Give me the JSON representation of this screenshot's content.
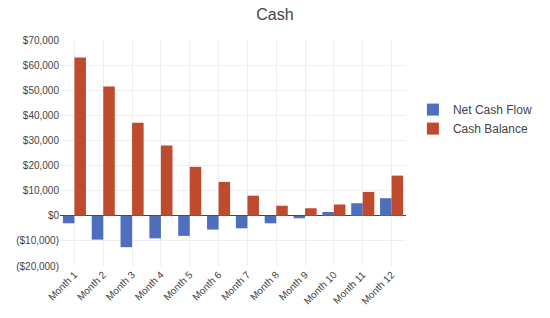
{
  "chart_data": {
    "type": "bar",
    "title": "Cash",
    "categories": [
      "Month 1",
      "Month 2",
      "Month 3",
      "Month 4",
      "Month 5",
      "Month 6",
      "Month 7",
      "Month 8",
      "Month 9",
      "Month 10",
      "Month 11",
      "Month 12"
    ],
    "series": [
      {
        "name": "Net Cash Flow",
        "color": "#4F6EBE",
        "values": [
          -3000,
          -9500,
          -12500,
          -9000,
          -8000,
          -5500,
          -5000,
          -3000,
          -1000,
          1500,
          5000,
          7000
        ]
      },
      {
        "name": "Cash Balance",
        "color": "#BE4B2E",
        "values": [
          63000,
          51500,
          37000,
          28000,
          19500,
          13500,
          8000,
          4000,
          3000,
          4500,
          9500,
          16000
        ]
      }
    ],
    "ylim": [
      -20000,
      70000
    ],
    "yticks": [
      {
        "value": -20000,
        "label": "($20,000)"
      },
      {
        "value": -10000,
        "label": "($10,000)"
      },
      {
        "value": 0,
        "label": "$0"
      },
      {
        "value": 10000,
        "label": "$10,000"
      },
      {
        "value": 20000,
        "label": "$20,000"
      },
      {
        "value": 30000,
        "label": "$30,000"
      },
      {
        "value": 40000,
        "label": "$40,000"
      },
      {
        "value": 50000,
        "label": "$50,000"
      },
      {
        "value": 60000,
        "label": "$60,000"
      },
      {
        "value": 70000,
        "label": "$70,000"
      }
    ],
    "grid": true,
    "legend": "right"
  }
}
